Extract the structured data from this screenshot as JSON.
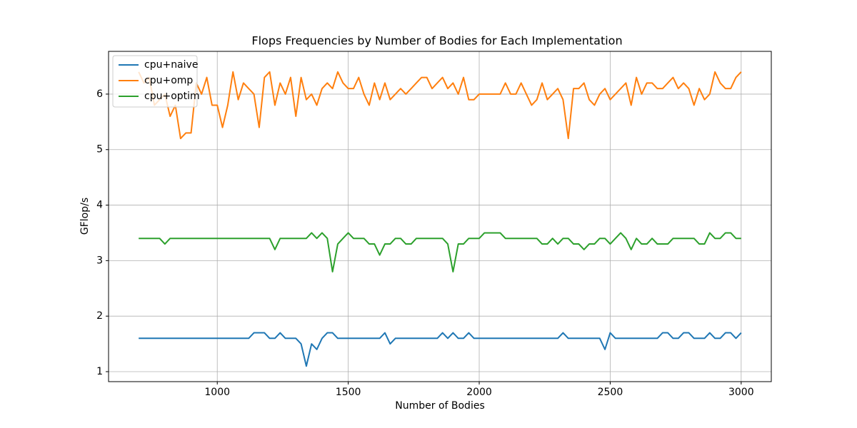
{
  "chart_data": {
    "type": "line",
    "title": "Flops Frequencies by Number of Bodies for Each Implementation",
    "xlabel": "Number of Bodies",
    "ylabel": "GFlop/s",
    "x": [
      700,
      720,
      740,
      760,
      780,
      800,
      820,
      840,
      860,
      880,
      900,
      920,
      940,
      960,
      980,
      1000,
      1020,
      1040,
      1060,
      1080,
      1100,
      1120,
      1140,
      1160,
      1180,
      1200,
      1220,
      1240,
      1260,
      1280,
      1300,
      1320,
      1340,
      1360,
      1380,
      1400,
      1420,
      1440,
      1460,
      1480,
      1500,
      1520,
      1540,
      1560,
      1580,
      1600,
      1620,
      1640,
      1660,
      1680,
      1700,
      1720,
      1740,
      1760,
      1780,
      1800,
      1820,
      1840,
      1860,
      1880,
      1900,
      1920,
      1940,
      1960,
      1980,
      2000,
      2020,
      2040,
      2060,
      2080,
      2100,
      2120,
      2140,
      2160,
      2180,
      2200,
      2220,
      2240,
      2260,
      2280,
      2300,
      2320,
      2340,
      2360,
      2380,
      2400,
      2420,
      2440,
      2460,
      2480,
      2500,
      2520,
      2540,
      2560,
      2580,
      2600,
      2620,
      2640,
      2660,
      2680,
      2700,
      2720,
      2740,
      2760,
      2780,
      2800,
      2820,
      2840,
      2860,
      2880,
      2900,
      2920,
      2940,
      2960,
      2980,
      3000
    ],
    "series": [
      {
        "name": "cpu+naive",
        "color": "#1f77b4",
        "values": [
          1.6,
          1.6,
          1.6,
          1.6,
          1.6,
          1.6,
          1.6,
          1.6,
          1.6,
          1.6,
          1.6,
          1.6,
          1.6,
          1.6,
          1.6,
          1.6,
          1.6,
          1.6,
          1.6,
          1.6,
          1.6,
          1.6,
          1.7,
          1.7,
          1.7,
          1.6,
          1.6,
          1.7,
          1.6,
          1.6,
          1.6,
          1.5,
          1.1,
          1.5,
          1.4,
          1.6,
          1.7,
          1.7,
          1.6,
          1.6,
          1.6,
          1.6,
          1.6,
          1.6,
          1.6,
          1.6,
          1.6,
          1.7,
          1.5,
          1.6,
          1.6,
          1.6,
          1.6,
          1.6,
          1.6,
          1.6,
          1.6,
          1.6,
          1.7,
          1.6,
          1.7,
          1.6,
          1.6,
          1.7,
          1.6,
          1.6,
          1.6,
          1.6,
          1.6,
          1.6,
          1.6,
          1.6,
          1.6,
          1.6,
          1.6,
          1.6,
          1.6,
          1.6,
          1.6,
          1.6,
          1.6,
          1.7,
          1.6,
          1.6,
          1.6,
          1.6,
          1.6,
          1.6,
          1.6,
          1.4,
          1.7,
          1.6,
          1.6,
          1.6,
          1.6,
          1.6,
          1.6,
          1.6,
          1.6,
          1.6,
          1.7,
          1.7,
          1.6,
          1.6,
          1.7,
          1.7,
          1.6,
          1.6,
          1.6,
          1.7,
          1.6,
          1.6,
          1.7,
          1.7,
          1.6,
          1.7
        ]
      },
      {
        "name": "cpu+omp",
        "color": "#ff7f0e",
        "values": [
          6.4,
          6.2,
          6.3,
          5.8,
          5.9,
          6.0,
          5.6,
          5.8,
          5.2,
          5.3,
          5.3,
          6.2,
          6.0,
          6.3,
          5.8,
          5.8,
          5.4,
          5.8,
          6.4,
          5.9,
          6.2,
          6.1,
          6.0,
          5.4,
          6.3,
          6.4,
          5.8,
          6.2,
          6.0,
          6.3,
          5.6,
          6.3,
          5.9,
          6.0,
          5.8,
          6.1,
          6.2,
          6.1,
          6.4,
          6.2,
          6.1,
          6.1,
          6.3,
          6.0,
          5.8,
          6.2,
          5.9,
          6.2,
          5.9,
          6.0,
          6.1,
          6.0,
          6.1,
          6.2,
          6.3,
          6.3,
          6.1,
          6.2,
          6.3,
          6.1,
          6.2,
          6.0,
          6.3,
          5.9,
          5.9,
          6.0,
          6.0,
          6.0,
          6.0,
          6.0,
          6.2,
          6.0,
          6.0,
          6.2,
          6.0,
          5.8,
          5.9,
          6.2,
          5.9,
          6.0,
          6.1,
          5.9,
          5.2,
          6.1,
          6.1,
          6.2,
          5.9,
          5.8,
          6.0,
          6.1,
          5.9,
          6.0,
          6.1,
          6.2,
          5.8,
          6.3,
          6.0,
          6.2,
          6.2,
          6.1,
          6.1,
          6.2,
          6.3,
          6.1,
          6.2,
          6.1,
          5.8,
          6.1,
          5.9,
          6.0,
          6.4,
          6.2,
          6.1,
          6.1,
          6.3,
          6.4
        ]
      },
      {
        "name": "cpu+optim",
        "color": "#2ca02c",
        "values": [
          3.4,
          3.4,
          3.4,
          3.4,
          3.4,
          3.3,
          3.4,
          3.4,
          3.4,
          3.4,
          3.4,
          3.4,
          3.4,
          3.4,
          3.4,
          3.4,
          3.4,
          3.4,
          3.4,
          3.4,
          3.4,
          3.4,
          3.4,
          3.4,
          3.4,
          3.4,
          3.2,
          3.4,
          3.4,
          3.4,
          3.4,
          3.4,
          3.4,
          3.5,
          3.4,
          3.5,
          3.4,
          2.8,
          3.3,
          3.4,
          3.5,
          3.4,
          3.4,
          3.4,
          3.3,
          3.3,
          3.1,
          3.3,
          3.3,
          3.4,
          3.4,
          3.3,
          3.3,
          3.4,
          3.4,
          3.4,
          3.4,
          3.4,
          3.4,
          3.3,
          2.8,
          3.3,
          3.3,
          3.4,
          3.4,
          3.4,
          3.5,
          3.5,
          3.5,
          3.5,
          3.4,
          3.4,
          3.4,
          3.4,
          3.4,
          3.4,
          3.4,
          3.3,
          3.3,
          3.4,
          3.3,
          3.4,
          3.4,
          3.3,
          3.3,
          3.2,
          3.3,
          3.3,
          3.4,
          3.4,
          3.3,
          3.4,
          3.5,
          3.4,
          3.2,
          3.4,
          3.3,
          3.3,
          3.4,
          3.3,
          3.3,
          3.3,
          3.4,
          3.4,
          3.4,
          3.4,
          3.4,
          3.3,
          3.3,
          3.5,
          3.4,
          3.4,
          3.5,
          3.5,
          3.4,
          3.4
        ]
      }
    ],
    "xlim": [
      585,
      3115
    ],
    "ylim": [
      0.82,
      6.77
    ],
    "xticks": [
      1000,
      1500,
      2000,
      2500,
      3000
    ],
    "yticks": [
      1,
      2,
      3,
      4,
      5,
      6
    ],
    "grid": true,
    "legend": "upper left"
  }
}
